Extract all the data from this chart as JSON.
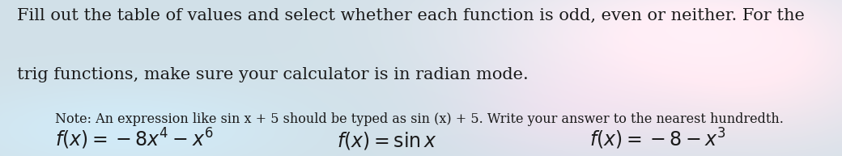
{
  "background_base": "#cde0e8",
  "background_color": "#d0e2ea",
  "main_text_line1": "Fill out the table of values and select whether each function is odd, even or neither. For the",
  "main_text_line2": "trig functions, make sure your calculator is in radian mode.",
  "note_text": "Note: An expression like sin x + 5 should be typed as sin (x) + 5. Write your answer to the nearest hundredth.",
  "func1": "$f(x) = -8x^4 - x^6$",
  "func2": "$f(x) = \\sin x$",
  "func3": "$f(x) = -8 - x^3$",
  "main_fontsize": 15.0,
  "note_fontsize": 11.5,
  "func_fontsize": 17,
  "text_color": "#1a1a1a"
}
